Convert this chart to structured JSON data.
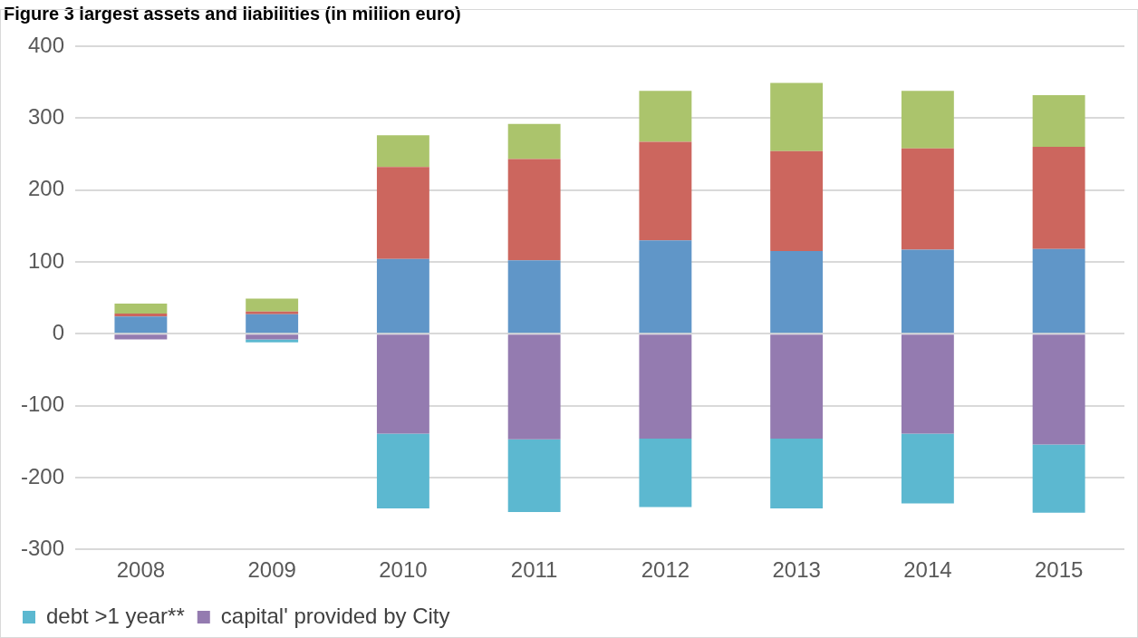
{
  "chart_data": {
    "type": "bar",
    "title": "Figure 3 largest assets and liabilities (in million euro)",
    "stacked": true,
    "categories": [
      "2008",
      "2009",
      "2010",
      "2011",
      "2012",
      "2013",
      "2014",
      "2015"
    ],
    "series": [
      {
        "color": "#6096c8",
        "values": [
          24,
          27,
          104,
          102,
          130,
          115,
          117,
          118
        ]
      },
      {
        "color": "#cc665e",
        "values": [
          4,
          4,
          128,
          141,
          137,
          139,
          141,
          142
        ]
      },
      {
        "color": "#abc46c",
        "values": [
          14,
          18,
          44,
          49,
          71,
          95,
          80,
          72
        ]
      },
      {
        "name": "capital' provided by City",
        "color": "#947bb0",
        "values": [
          -8,
          -8,
          -139,
          -147,
          -146,
          -146,
          -139,
          -154
        ]
      },
      {
        "name": "debt >1 year**",
        "color": "#5cb8d0",
        "values": [
          0,
          -4,
          -104,
          -101,
          -95,
          -97,
          -97,
          -95
        ]
      }
    ],
    "ylim": [
      -300,
      400
    ],
    "yticks": [
      -300,
      -200,
      -100,
      0,
      100,
      200,
      300,
      400
    ],
    "grid": "y",
    "legend": "bottom left"
  }
}
